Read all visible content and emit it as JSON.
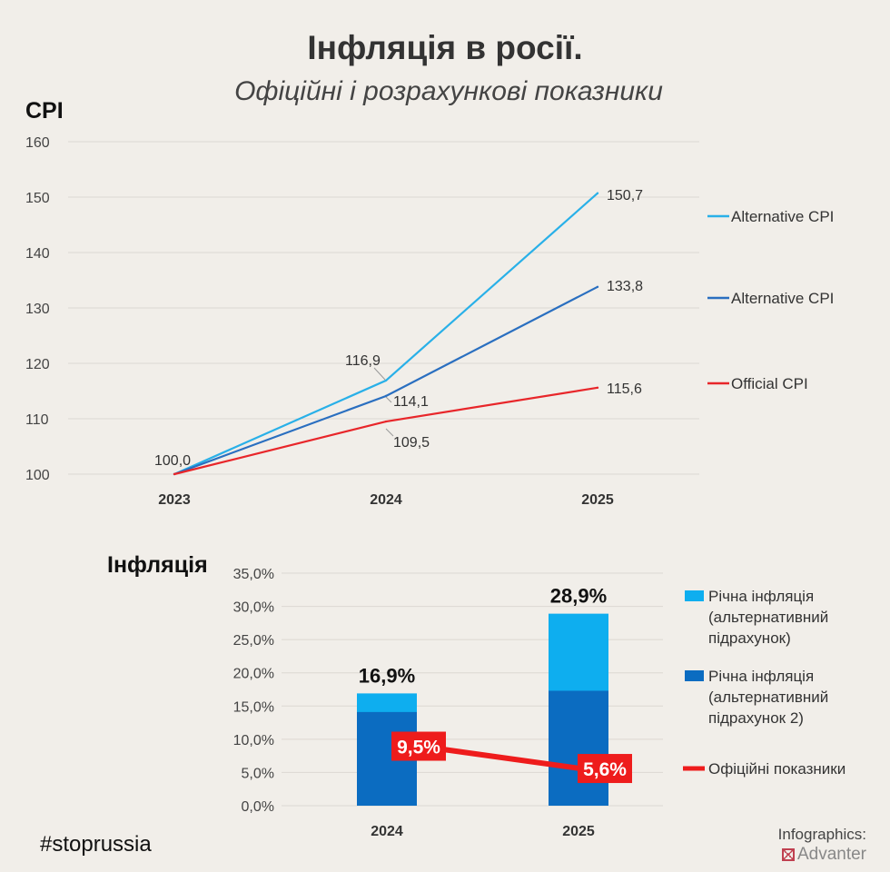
{
  "title": "Інфляція в росії.",
  "subtitle": "Офіційні і розрахункові показники",
  "hashtag": "#stoprussia",
  "credit": {
    "label": "Infographics:",
    "brand": "Advanter"
  },
  "chart_data": [
    {
      "type": "line",
      "ylabel": "CPI",
      "categories": [
        "2023",
        "2024",
        "2025"
      ],
      "ylim": [
        100,
        160
      ],
      "yticks": [
        "100",
        "110",
        "120",
        "130",
        "140",
        "150",
        "160"
      ],
      "grid": true,
      "legend": "right",
      "series": [
        {
          "name": "Alternative CPI",
          "color": "#29b0e8",
          "values": [
            100.0,
            116.9,
            150.7
          ],
          "labels": [
            "100,0",
            "116,9",
            "150,7"
          ]
        },
        {
          "name": "Alternative CPI",
          "color": "#2a6fc0",
          "values": [
            100.0,
            114.1,
            133.8
          ],
          "labels": [
            "",
            "114,1",
            "133,8"
          ]
        },
        {
          "name": "Official CPI",
          "color": "#e8262a",
          "values": [
            100.0,
            109.5,
            115.6
          ],
          "labels": [
            "",
            "109,5",
            "115,6"
          ]
        }
      ]
    },
    {
      "type": "bar",
      "ylabel": "Інфляція",
      "categories": [
        "2024",
        "2025"
      ],
      "ylim": [
        0,
        35
      ],
      "yticks": [
        "0,0%",
        "5,0%",
        "10,0%",
        "15,0%",
        "20,0%",
        "25,0%",
        "30,0%",
        "35,0%"
      ],
      "grid": true,
      "legend": "right",
      "series": [
        {
          "name": "Річна інфляція (альтернативний підрахунок)",
          "legend_lines": [
            "Річна інфляція",
            "(альтернативний",
            "підрахунок)"
          ],
          "color": "#0eaeef",
          "type": "bar",
          "values": [
            16.9,
            28.9
          ],
          "labels": [
            "16,9%",
            "28,9%"
          ]
        },
        {
          "name": "Річна інфляція (альтернативний підрахунок 2)",
          "legend_lines": [
            "Річна інфляція",
            "(альтернативний",
            "підрахунок 2)"
          ],
          "color": "#0b6cc1",
          "type": "bar",
          "values": [
            14.1,
            17.3
          ]
        },
        {
          "name": "Офіційні показники",
          "legend_lines": [
            "Офіційні показники"
          ],
          "color": "#ee1c1c",
          "type": "line",
          "values": [
            9.5,
            5.6
          ],
          "labels": [
            "9,5%",
            "5,6%"
          ]
        }
      ]
    }
  ]
}
